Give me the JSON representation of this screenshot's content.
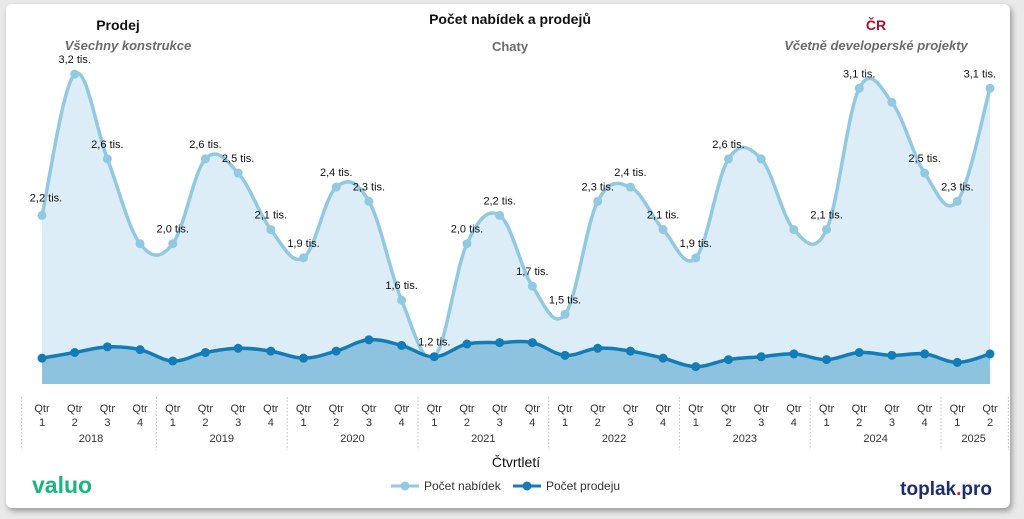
{
  "header": {
    "left_title": "Prodej",
    "left_subtitle": "Všechny konstrukce",
    "center_title": "Počet nabídek a prodejů",
    "center_subtitle": "Chaty",
    "right_title": "ČR",
    "right_subtitle": "Včetně developerské projekty"
  },
  "branding": {
    "left_logo": "valuo",
    "right_logo_main": "toplak",
    "right_logo_dot": ".",
    "right_logo_tld": "pro"
  },
  "colors": {
    "offers_line": "#92c9e2",
    "offers_area": "#dcedf7",
    "sales_line": "#137bb5",
    "sales_area": "#8ec3e0",
    "right_title": "#a5122a",
    "logo_green": "#17b77d",
    "logo_navy": "#1c2d74",
    "logo_red": "#c9243f"
  },
  "chart_data": {
    "type": "line",
    "xlabel": "Čtvrtletí",
    "quarter_prefix": "Qtr",
    "years": [
      "2018",
      "2019",
      "2020",
      "2021",
      "2022",
      "2023",
      "2024",
      "2025"
    ],
    "quarters": [
      "1",
      "2",
      "3",
      "4",
      "1",
      "2",
      "3",
      "4",
      "1",
      "2",
      "3",
      "4",
      "1",
      "2",
      "3",
      "4",
      "1",
      "2",
      "3",
      "4",
      "1",
      "2",
      "3",
      "4",
      "1",
      "2",
      "3",
      "4",
      "1",
      "2"
    ],
    "year_of_quarter": [
      "2018",
      "2018",
      "2018",
      "2018",
      "2019",
      "2019",
      "2019",
      "2019",
      "2020",
      "2020",
      "2020",
      "2020",
      "2021",
      "2021",
      "2021",
      "2021",
      "2022",
      "2022",
      "2022",
      "2022",
      "2023",
      "2023",
      "2023",
      "2023",
      "2024",
      "2024",
      "2024",
      "2024",
      "2025",
      "2025"
    ],
    "ylim": [
      1000,
      3300
    ],
    "legend": {
      "placement": "bottom-center"
    },
    "series": [
      {
        "name": "Počet nabídek",
        "values": [
          2200,
          3200,
          2600,
          2000,
          2000,
          2600,
          2500,
          2100,
          1900,
          2400,
          2300,
          1600,
          1200,
          2000,
          2200,
          1700,
          1500,
          2300,
          2400,
          2100,
          1900,
          2600,
          2600,
          2100,
          2100,
          3100,
          3000,
          2500,
          2300,
          3100
        ],
        "labels": [
          "2,2 tis.",
          "3,2 tis.",
          "2,6 tis.",
          "",
          "2,0 tis.",
          "2,6 tis.",
          "2,5 tis.",
          "2,1 tis.",
          "1,9 tis.",
          "2,4 tis.",
          "2,3 tis.",
          "1,6 tis.",
          "1,2 tis.",
          "2,0 tis.",
          "2,2 tis.",
          "1,7 tis.",
          "1,5 tis.",
          "2,3 tis.",
          "2,4 tis.",
          "2,1 tis.",
          "1,9 tis.",
          "2,6 tis.",
          "",
          "",
          "2,1 tis.",
          "3,1 tis.",
          "",
          "2,5 tis.",
          "2,3 tis.",
          "3,1 tis."
        ]
      },
      {
        "name": "Počet prodeju",
        "values": [
          1190,
          1230,
          1270,
          1250,
          1170,
          1230,
          1260,
          1240,
          1190,
          1240,
          1320,
          1280,
          1200,
          1290,
          1300,
          1300,
          1210,
          1260,
          1240,
          1190,
          1130,
          1180,
          1200,
          1220,
          1180,
          1230,
          1210,
          1220,
          1160,
          1220
        ]
      }
    ]
  }
}
